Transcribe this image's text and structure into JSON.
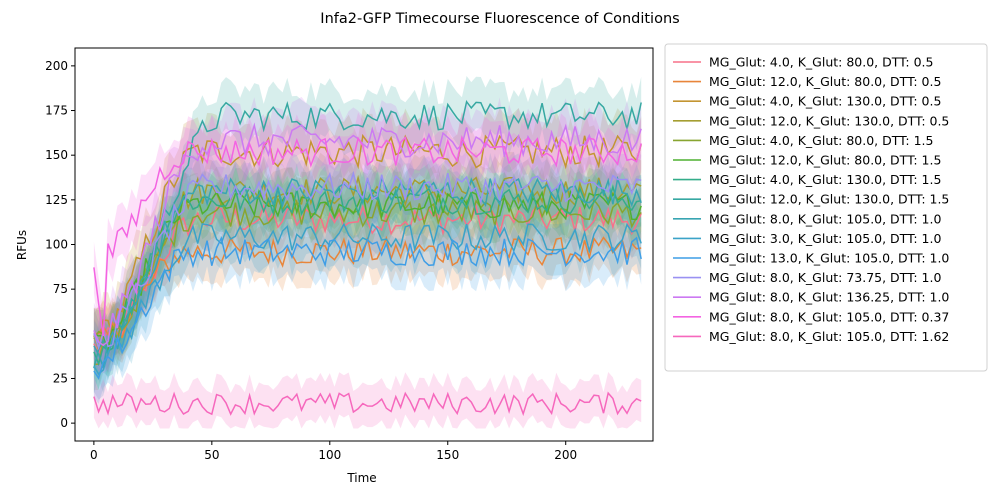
{
  "chart_data": {
    "type": "line",
    "title": "Infa2-GFP Timecourse Fluorescence of Conditions",
    "xlabel": "Time",
    "ylabel": "RFUs",
    "xlim": [
      -8,
      237
    ],
    "ylim": [
      -10,
      210
    ],
    "xticks": [
      0,
      50,
      100,
      150,
      200
    ],
    "yticks": [
      0,
      25,
      50,
      75,
      100,
      125,
      150,
      175,
      200
    ],
    "grid": false,
    "legend": "outside-right",
    "confidence_bands": true,
    "x_step": 2,
    "x_max": 232,
    "series": [
      {
        "name": "MG_Glut: 4.0, K_Glut: 80.0, DTT: 0.5",
        "color": "#f77189",
        "start": 42,
        "plateau": 114,
        "rise_end": 45,
        "noise": 8
      },
      {
        "name": "MG_Glut: 12.0, K_Glut: 80.0, DTT: 0.5",
        "color": "#e8853a",
        "start": 45,
        "plateau": 96,
        "rise_end": 40,
        "noise": 8
      },
      {
        "name": "MG_Glut: 4.0, K_Glut: 130.0, DTT: 0.5",
        "color": "#c39532",
        "start": 48,
        "plateau": 152,
        "rise_end": 45,
        "noise": 9
      },
      {
        "name": "MG_Glut: 12.0, K_Glut: 130.0, DTT: 0.5",
        "color": "#a59e31",
        "start": 40,
        "plateau": 130,
        "rise_end": 45,
        "noise": 8
      },
      {
        "name": "MG_Glut: 4.0, K_Glut: 80.0, DTT: 1.5",
        "color": "#88a531",
        "start": 44,
        "plateau": 118,
        "rise_end": 45,
        "noise": 8
      },
      {
        "name": "MG_Glut: 12.0, K_Glut: 80.0, DTT: 1.5",
        "color": "#4fb031",
        "start": 42,
        "plateau": 122,
        "rise_end": 42,
        "noise": 8
      },
      {
        "name": "MG_Glut: 4.0, K_Glut: 130.0, DTT: 1.5",
        "color": "#34ad8a",
        "start": 40,
        "plateau": 125,
        "rise_end": 42,
        "noise": 8
      },
      {
        "name": "MG_Glut: 12.0, K_Glut: 130.0, DTT: 1.5",
        "color": "#36a8a2",
        "start": 38,
        "plateau": 172,
        "rise_end": 55,
        "noise": 8
      },
      {
        "name": "MG_Glut: 8.0, K_Glut: 105.0, DTT: 1.0",
        "color": "#38a5b2",
        "start": 36,
        "plateau": 130,
        "rise_end": 45,
        "noise": 8
      },
      {
        "name": "MG_Glut: 3.0, K_Glut: 105.0, DTT: 1.0",
        "color": "#3ba3c8",
        "start": 34,
        "plateau": 104,
        "rise_end": 45,
        "noise": 8
      },
      {
        "name": "MG_Glut: 13.0, K_Glut: 105.0, DTT: 1.0",
        "color": "#3f9ee6",
        "start": 32,
        "plateau": 96,
        "rise_end": 42,
        "noise": 8
      },
      {
        "name": "MG_Glut: 8.0, K_Glut: 73.75, DTT: 1.0",
        "color": "#9a91f2",
        "start": 45,
        "plateau": 132,
        "rise_end": 48,
        "noise": 8
      },
      {
        "name": "MG_Glut: 8.0, K_Glut: 136.25, DTT: 1.0",
        "color": "#cc79f2",
        "start": 46,
        "plateau": 158,
        "rise_end": 48,
        "noise": 9
      },
      {
        "name": "MG_Glut: 8.0, K_Glut: 105.0, DTT: 0.37",
        "color": "#f364e2",
        "start": 90,
        "plateau": 152,
        "rise_end": 40,
        "noise": 8
      },
      {
        "name": "MG_Glut: 8.0, K_Glut: 105.0, DTT: 1.62",
        "color": "#f668bd",
        "start": 11,
        "plateau": 11,
        "rise_end": 0,
        "noise": 6
      }
    ]
  }
}
